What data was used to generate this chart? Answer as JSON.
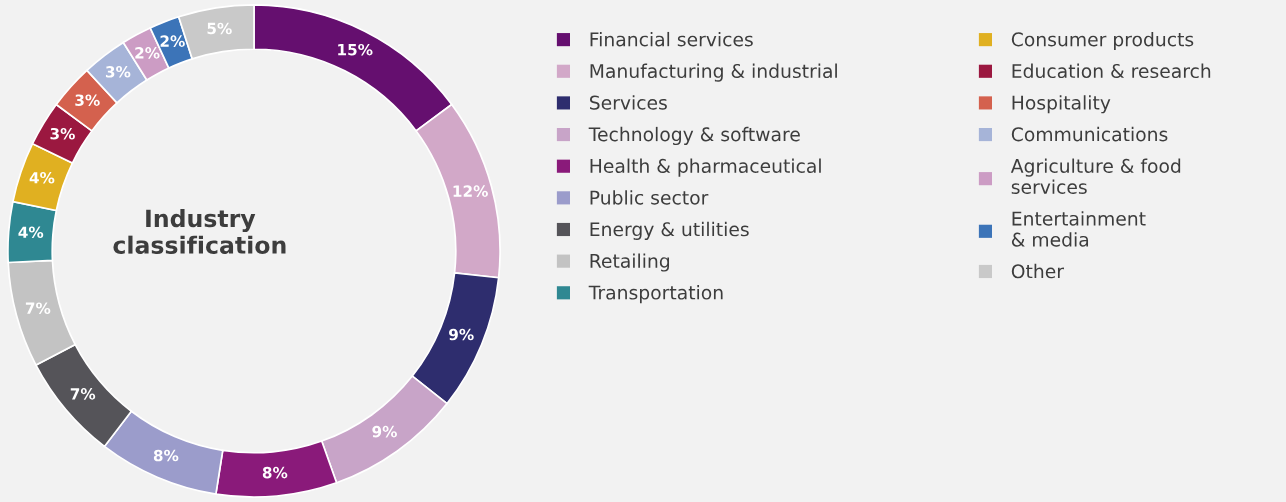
{
  "chart_data": {
    "type": "donut",
    "title": "Industry classification",
    "categories": [
      "Financial services",
      "Manufacturing & industrial",
      "Services",
      "Technology & software",
      "Health & pharmaceutical",
      "Public sector",
      "Energy & utilities",
      "Retailing",
      "Transportation",
      "Consumer products",
      "Education & research",
      "Hospitality",
      "Communications",
      "Agriculture & food\nservices",
      "Entertainment\n& media",
      "Other"
    ],
    "values": [
      15,
      12,
      9,
      9,
      8,
      8,
      7,
      7,
      4,
      4,
      3,
      3,
      3,
      2,
      2,
      5
    ],
    "value_labels": [
      "15%",
      "12%",
      "9%",
      "9%",
      "8%",
      "8%",
      "7%",
      "7%",
      "4%",
      "4%",
      "3%",
      "3%",
      "3%",
      "2%",
      "2%",
      "5%"
    ],
    "colors": [
      "#650f6f",
      "#d2a8c8",
      "#2e2d6e",
      "#c8a4c8",
      "#8a1a7a",
      "#9b9ccb",
      "#555459",
      "#c3c3c3",
      "#2f8892",
      "#e0b021",
      "#9b1840",
      "#d4614e",
      "#a6b4d8",
      "#cc9cc4",
      "#3c74b8",
      "#c9c9c9"
    ],
    "legend": "right"
  }
}
